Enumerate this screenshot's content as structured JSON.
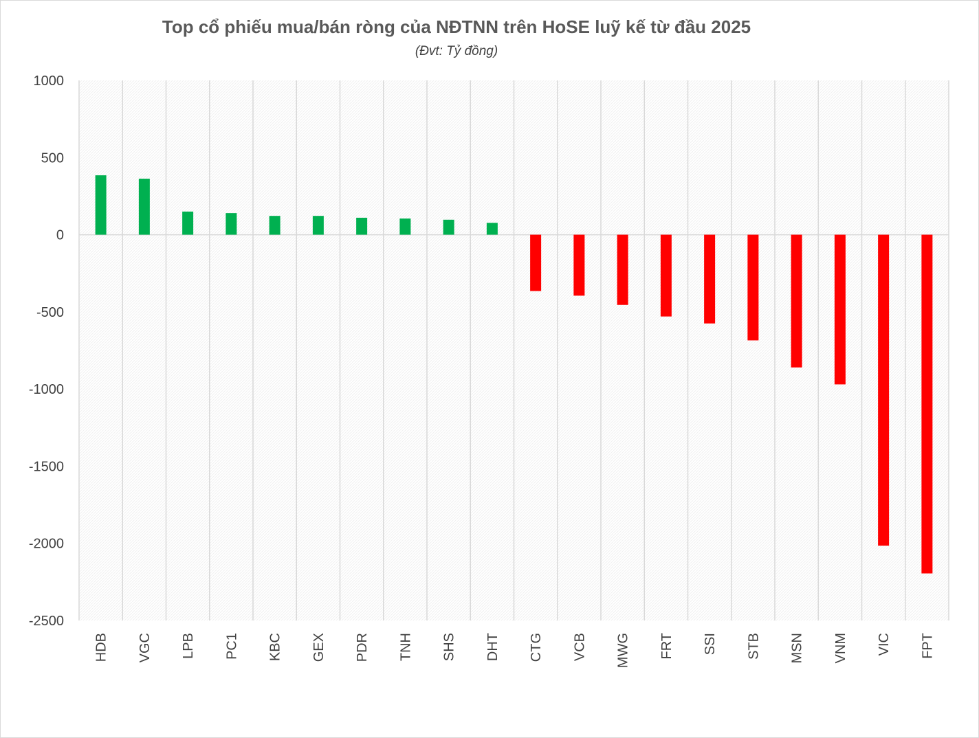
{
  "chart_data": {
    "type": "bar",
    "title": "Top cổ phiếu mua/bán ròng của NĐTNN trên HoSE luỹ kế từ đầu 2025",
    "subtitle": "(Đvt: Tỷ đồng)",
    "xlabel": "",
    "ylabel": "",
    "categories": [
      "HDB",
      "VGC",
      "LPB",
      "PC1",
      "KBC",
      "GEX",
      "PDR",
      "TNH",
      "SHS",
      "DHT",
      "CTG",
      "VCB",
      "MWG",
      "FRT",
      "SSI",
      "STB",
      "MSN",
      "VNM",
      "VIC",
      "FPT"
    ],
    "values": [
      385,
      363,
      150,
      140,
      122,
      122,
      110,
      105,
      97,
      77,
      -365,
      -395,
      -455,
      -530,
      -575,
      -685,
      -860,
      -970,
      -2015,
      -2195
    ],
    "ylim": [
      -2500,
      1000
    ],
    "yticks": [
      1000,
      500,
      0,
      -500,
      -1000,
      -1500,
      -2000,
      -2500
    ],
    "grid": "vertical",
    "legend": "none",
    "colors": {
      "positive": "#00b050",
      "negative": "#ff0000",
      "grid": "#d9d9d9",
      "zero_line": "#d9d9d9"
    }
  }
}
